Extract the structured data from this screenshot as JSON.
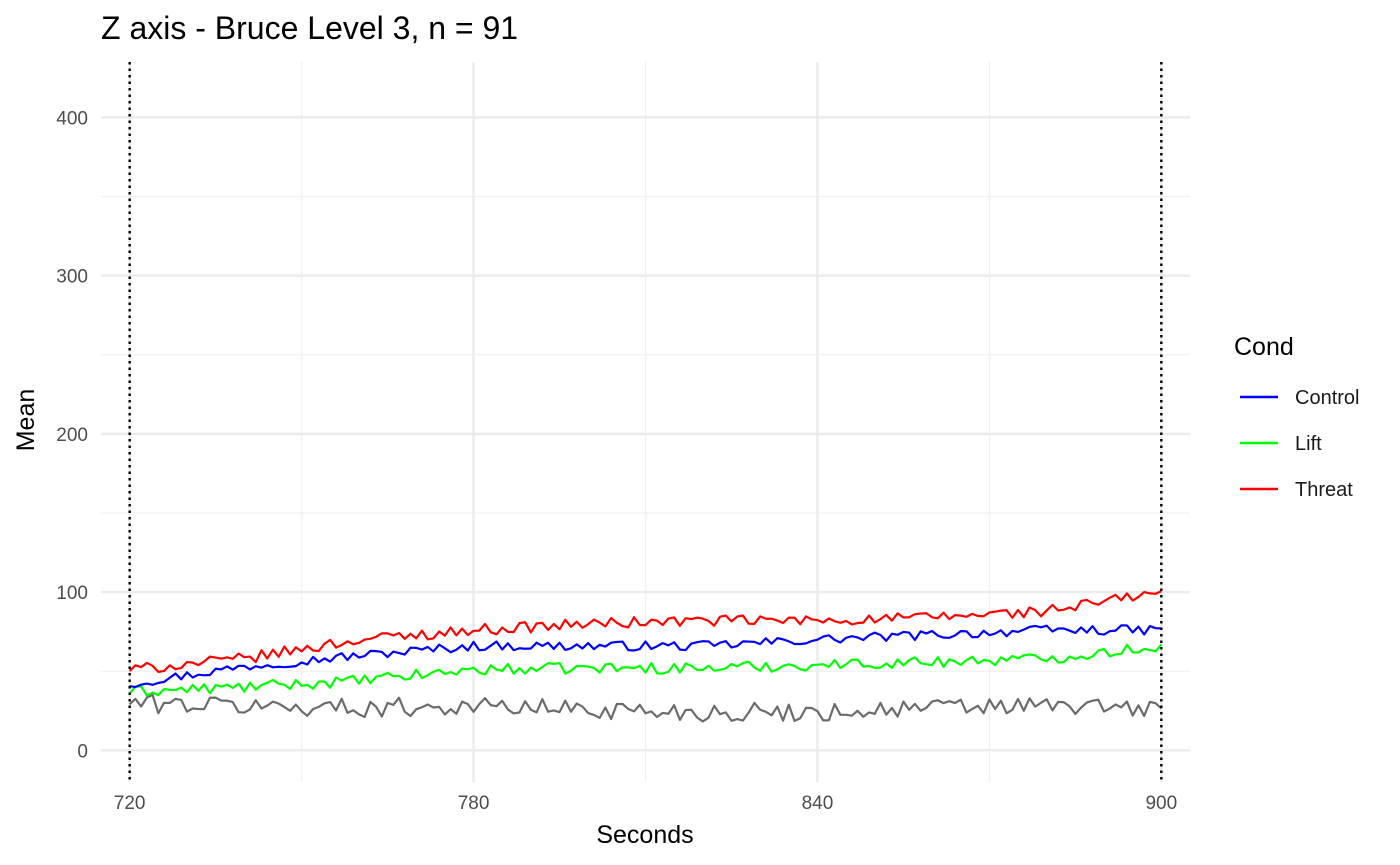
{
  "chart_data": {
    "type": "line",
    "title": "Z axis - Bruce Level 3, n =  91",
    "xlabel": "Seconds",
    "ylabel": "Mean",
    "xlim": [
      715,
      905
    ],
    "ylim": [
      -20,
      435
    ],
    "x_ticks": [
      720,
      780,
      840,
      900
    ],
    "x_tick_labels": [
      "720",
      "780",
      "840",
      "900"
    ],
    "y_ticks": [
      0,
      100,
      200,
      300,
      400
    ],
    "y_tick_labels": [
      "0",
      "100",
      "200",
      "300",
      "400"
    ],
    "vlines": [
      720,
      900
    ],
    "grid": true,
    "legend": {
      "title": "Cond",
      "placement": "right"
    },
    "x_start": 720,
    "x_end": 900,
    "series": [
      {
        "name": "Control",
        "color": "#0000ff",
        "points": [
          [
            720,
            42
          ],
          [
            740,
            53
          ],
          [
            760,
            60
          ],
          [
            780,
            66
          ],
          [
            800,
            66
          ],
          [
            820,
            66
          ],
          [
            840,
            70
          ],
          [
            860,
            73
          ],
          [
            880,
            76
          ],
          [
            900,
            76
          ]
        ]
      },
      {
        "name": "Lift",
        "color": "#00ff00",
        "points": [
          [
            720,
            37
          ],
          [
            740,
            40
          ],
          [
            760,
            44
          ],
          [
            780,
            51
          ],
          [
            800,
            52
          ],
          [
            820,
            52
          ],
          [
            840,
            54
          ],
          [
            860,
            56
          ],
          [
            880,
            58
          ],
          [
            900,
            66
          ]
        ]
      },
      {
        "name": "Threat",
        "color": "#ff0000",
        "points": [
          [
            720,
            51
          ],
          [
            740,
            58
          ],
          [
            760,
            70
          ],
          [
            780,
            76
          ],
          [
            800,
            80
          ],
          [
            820,
            82
          ],
          [
            840,
            82
          ],
          [
            860,
            84
          ],
          [
            880,
            88
          ],
          [
            900,
            100
          ]
        ]
      },
      {
        "name": "",
        "color": "#6b6b6b",
        "points": [
          [
            720,
            30
          ],
          [
            740,
            28
          ],
          [
            760,
            27
          ],
          [
            780,
            28
          ],
          [
            800,
            26
          ],
          [
            820,
            24
          ],
          [
            840,
            24
          ],
          [
            860,
            27
          ],
          [
            880,
            28
          ],
          [
            900,
            26
          ]
        ]
      }
    ]
  }
}
